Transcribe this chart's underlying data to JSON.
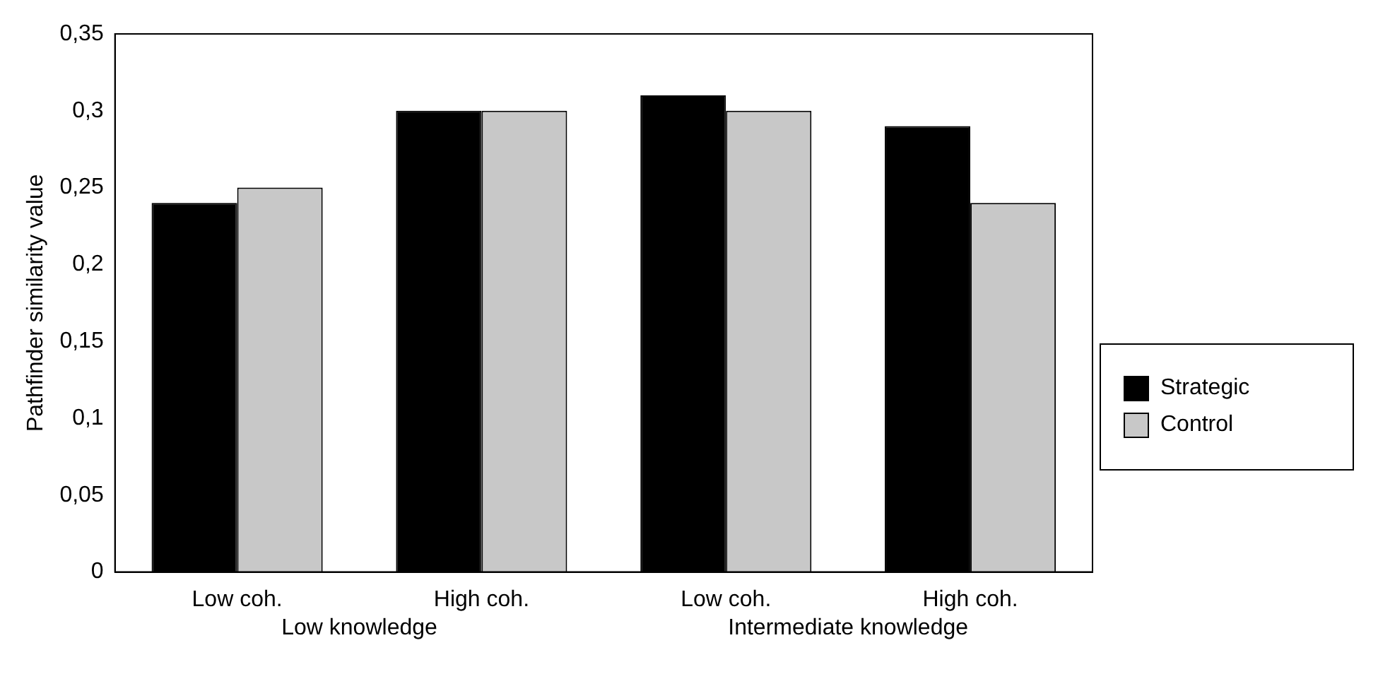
{
  "chart_data": {
    "type": "bar",
    "ylabel": "Pathfinder similarity value",
    "categories": [
      "Low coh.",
      "High coh.",
      "Low coh.",
      "High coh."
    ],
    "series": [
      {
        "name": "Strategic",
        "color": "#000000",
        "values": [
          0.24,
          0.3,
          0.31,
          0.29
        ]
      },
      {
        "name": "Control",
        "color": "#c8c8c8",
        "values": [
          0.25,
          0.3,
          0.3,
          0.24
        ]
      }
    ],
    "ylim": [
      0,
      0.35
    ],
    "yticks": [
      {
        "value": 0,
        "label": "0"
      },
      {
        "value": 0.05,
        "label": "0,05"
      },
      {
        "value": 0.1,
        "label": "0,1"
      },
      {
        "value": 0.15,
        "label": "0,15"
      },
      {
        "value": 0.2,
        "label": "0,2"
      },
      {
        "value": 0.25,
        "label": "0,25"
      },
      {
        "value": 0.3,
        "label": "0,3"
      },
      {
        "value": 0.35,
        "label": "0,35"
      }
    ],
    "annotations": [
      "Low knowledge",
      "Intermediate knowledge"
    ],
    "grid": false,
    "legend": "right"
  }
}
